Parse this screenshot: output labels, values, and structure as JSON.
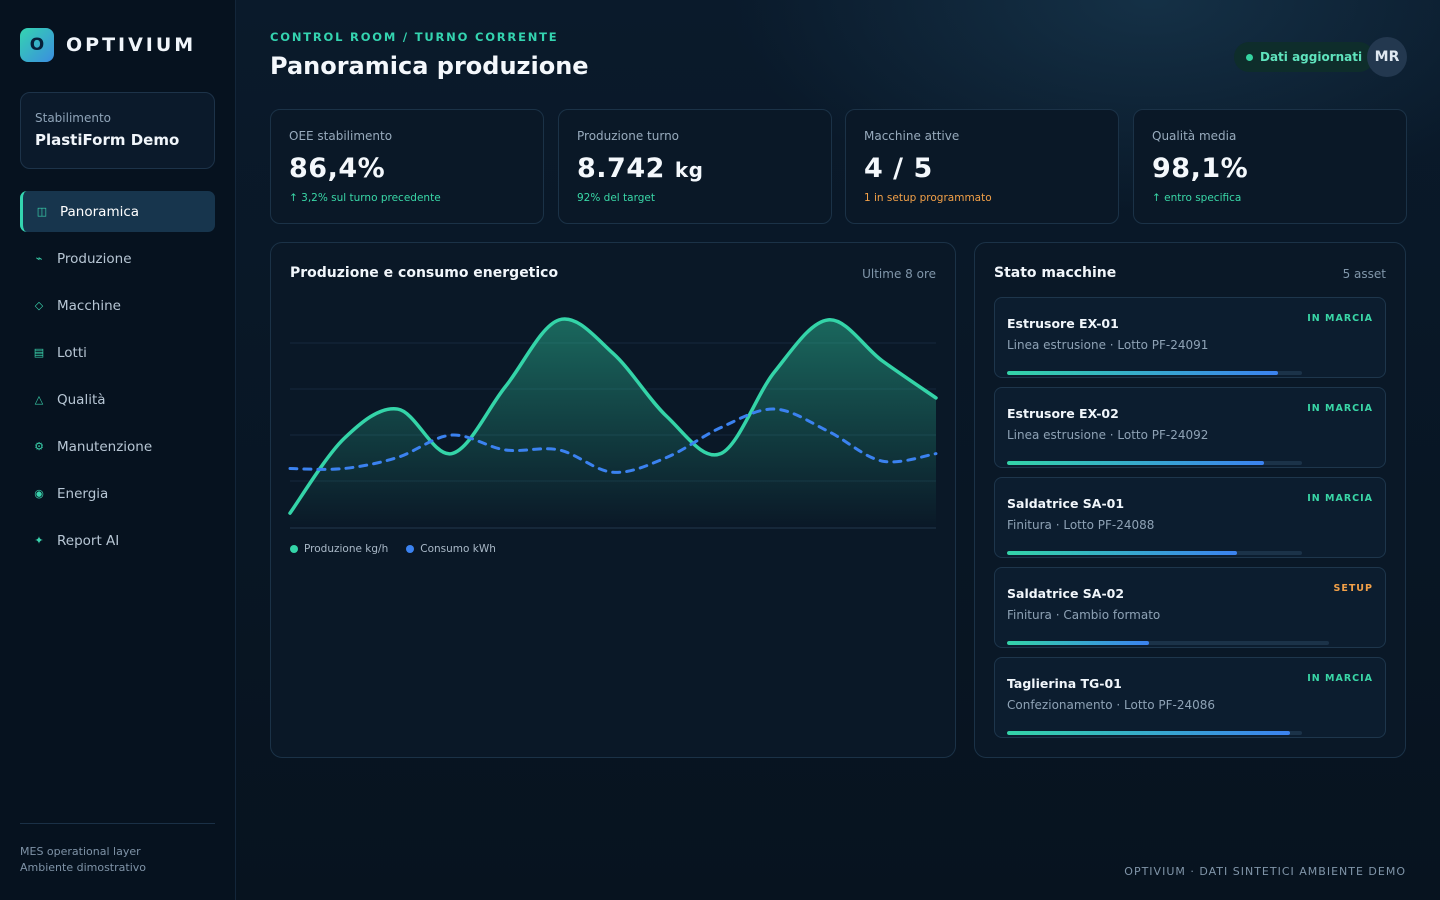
{
  "brand": {
    "logo_letter": "O",
    "name": "OPTIVIUM",
    "accent": "#34d4b0"
  },
  "plant": {
    "label": "Stabilimento",
    "name": "PlastiForm Demo"
  },
  "nav": [
    {
      "label": "Panoramica",
      "icon": "layout-icon",
      "glyph": "◫",
      "active": true
    },
    {
      "label": "Produzione",
      "icon": "trend-icon",
      "glyph": "⌁",
      "active": false
    },
    {
      "label": "Macchine",
      "icon": "diamond-icon",
      "glyph": "◇",
      "active": false
    },
    {
      "label": "Lotti",
      "icon": "list-icon",
      "glyph": "▤",
      "active": false
    },
    {
      "label": "Qualità",
      "icon": "triangle-icon",
      "glyph": "△",
      "active": false
    },
    {
      "label": "Manutenzione",
      "icon": "gear-icon",
      "glyph": "⚙",
      "active": false
    },
    {
      "label": "Energia",
      "icon": "target-icon",
      "glyph": "◉",
      "active": false
    },
    {
      "label": "Report AI",
      "icon": "sparkle-icon",
      "glyph": "✦",
      "active": false
    }
  ],
  "sidebar_footer": {
    "line1": "MES operational layer",
    "line2": "Ambiente dimostrativo"
  },
  "header": {
    "breadcrumb": "CONTROL ROOM / TURNO CORRENTE",
    "title": "Panoramica produzione",
    "status": "Dati aggiornati",
    "avatar": "MR"
  },
  "kpis": [
    {
      "label": "OEE stabilimento",
      "value": "86,4%",
      "unit": "",
      "sub": "↑ 3,2% sul turno precedente",
      "tone": "green"
    },
    {
      "label": "Produzione turno",
      "value": "8.742",
      "unit": "kg",
      "sub": "92% del target",
      "tone": "green"
    },
    {
      "label": "Macchine attive",
      "value": "4 / 5",
      "unit": "",
      "sub": "1 in setup programmato",
      "tone": "orange"
    },
    {
      "label": "Qualità media",
      "value": "98,1%",
      "unit": "",
      "sub": "↑ entro specifica",
      "tone": "green"
    }
  ],
  "chart_panel": {
    "title": "Produzione e consumo energetico",
    "meta": "Ultime 8 ore"
  },
  "chart_data": {
    "type": "line",
    "x": [
      0,
      1,
      2,
      3,
      4,
      5,
      6,
      7,
      8,
      9,
      10,
      11,
      12
    ],
    "series": [
      {
        "name": "Produzione kg/h",
        "color": "#34d4a8",
        "style": "solid-area",
        "values": [
          4,
          24,
          32,
          20,
          38,
          56,
          47,
          30,
          20,
          42,
          56,
          45,
          35
        ]
      },
      {
        "name": "Consumo kWh",
        "color": "#3b82f0",
        "style": "dashed",
        "values": [
          16,
          16,
          19,
          25,
          21,
          21,
          15,
          19,
          27,
          32,
          26,
          18,
          20
        ]
      }
    ],
    "ylim": [
      0,
      60
    ],
    "grid": true,
    "legend": "bottom-left",
    "xlabel": "",
    "ylabel": ""
  },
  "machines_panel": {
    "title": "Stato macchine",
    "meta": "5 asset"
  },
  "machines": [
    {
      "name": "Estrusore EX-01",
      "desc": "Linea estrusione · Lotto PF-24091",
      "status": "IN MARCIA",
      "tone": "green",
      "progress": 0.92
    },
    {
      "name": "Estrusore EX-02",
      "desc": "Linea estrusione · Lotto PF-24092",
      "status": "IN MARCIA",
      "tone": "green",
      "progress": 0.87
    },
    {
      "name": "Saldatrice SA-01",
      "desc": "Finitura · Lotto PF-24088",
      "status": "IN MARCIA",
      "tone": "green",
      "progress": 0.78
    },
    {
      "name": "Saldatrice SA-02",
      "desc": "Finitura · Cambio formato",
      "status": "SETUP",
      "tone": "orange",
      "progress": 0.44
    },
    {
      "name": "Taglierina TG-01",
      "desc": "Confezionamento · Lotto PF-24086",
      "status": "IN MARCIA",
      "tone": "green",
      "progress": 0.96
    }
  ],
  "footer": "OPTIVIUM · DATI SINTETICI AMBIENTE DEMO"
}
